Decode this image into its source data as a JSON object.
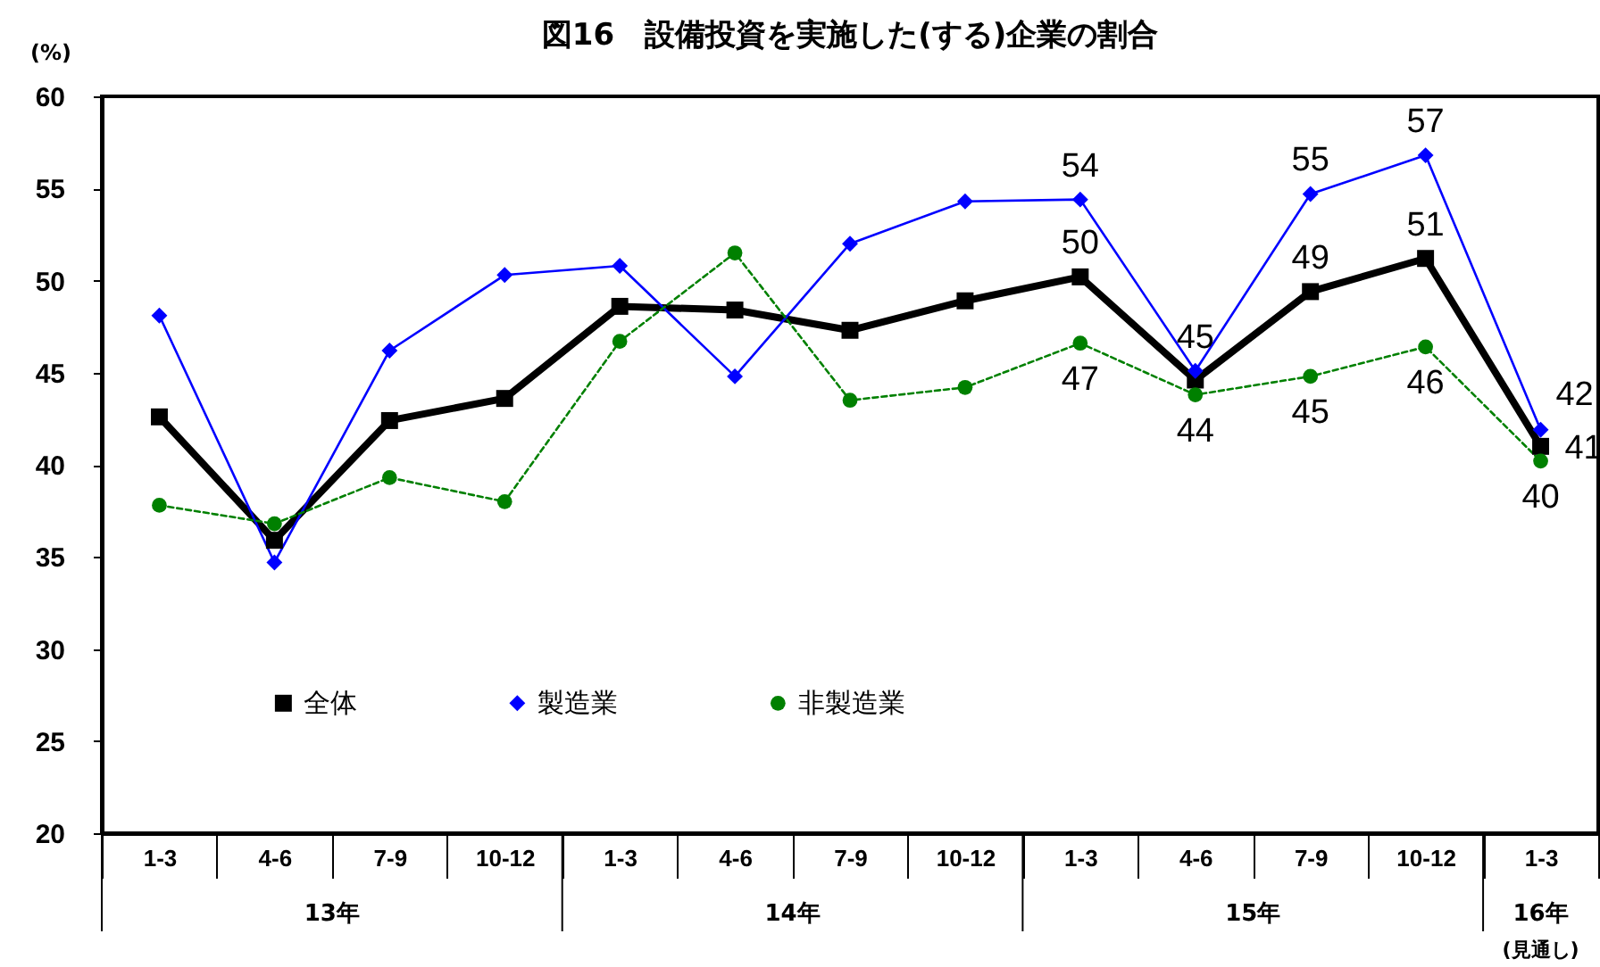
{
  "chart_data": {
    "type": "line",
    "title": "図16　設備投資を実施した(する)企業の割合",
    "ylabel": "(%)",
    "categories": [
      "1-3",
      "4-6",
      "7-9",
      "10-12",
      "1-3",
      "4-6",
      "7-9",
      "10-12",
      "1-3",
      "4-6",
      "7-9",
      "10-12",
      "1-3"
    ],
    "annotations": [
      "13年",
      "14年",
      "15年",
      "16年",
      "(見通し)"
    ],
    "ylim": [
      20,
      60
    ],
    "yticks": [
      20,
      25,
      30,
      35,
      40,
      45,
      50,
      55,
      60
    ],
    "grid": false,
    "legend": "bottom left",
    "series": [
      {
        "name": "全体",
        "color": "#000000",
        "marker": "square",
        "line_style": "solid",
        "values": [
          42.6,
          35.9,
          42.4,
          43.6,
          48.6,
          48.4,
          47.3,
          48.9,
          50.2,
          44.6,
          49.4,
          51.2,
          41.0
        ],
        "value_labels": [
          null,
          null,
          null,
          null,
          null,
          null,
          null,
          null,
          "50",
          null,
          "49",
          "51",
          "41"
        ]
      },
      {
        "name": "製造業",
        "color": "#0000ff",
        "marker": "diamond",
        "line_style": "solid",
        "values": [
          48.1,
          34.7,
          46.2,
          50.3,
          50.8,
          44.8,
          52.0,
          54.3,
          54.4,
          45.1,
          54.7,
          56.8,
          41.9
        ],
        "value_labels": [
          null,
          null,
          null,
          null,
          null,
          null,
          null,
          null,
          "54",
          "45",
          "55",
          "57",
          "42"
        ]
      },
      {
        "name": "非製造業",
        "color": "#008000",
        "marker": "circle",
        "line_style": "dashed",
        "values": [
          37.8,
          36.8,
          39.3,
          38.0,
          46.7,
          51.5,
          43.5,
          44.2,
          46.6,
          43.8,
          44.8,
          46.4,
          40.2
        ],
        "value_labels": [
          null,
          null,
          null,
          null,
          null,
          null,
          null,
          null,
          "47",
          "44",
          "45",
          "46",
          "40"
        ]
      }
    ]
  }
}
